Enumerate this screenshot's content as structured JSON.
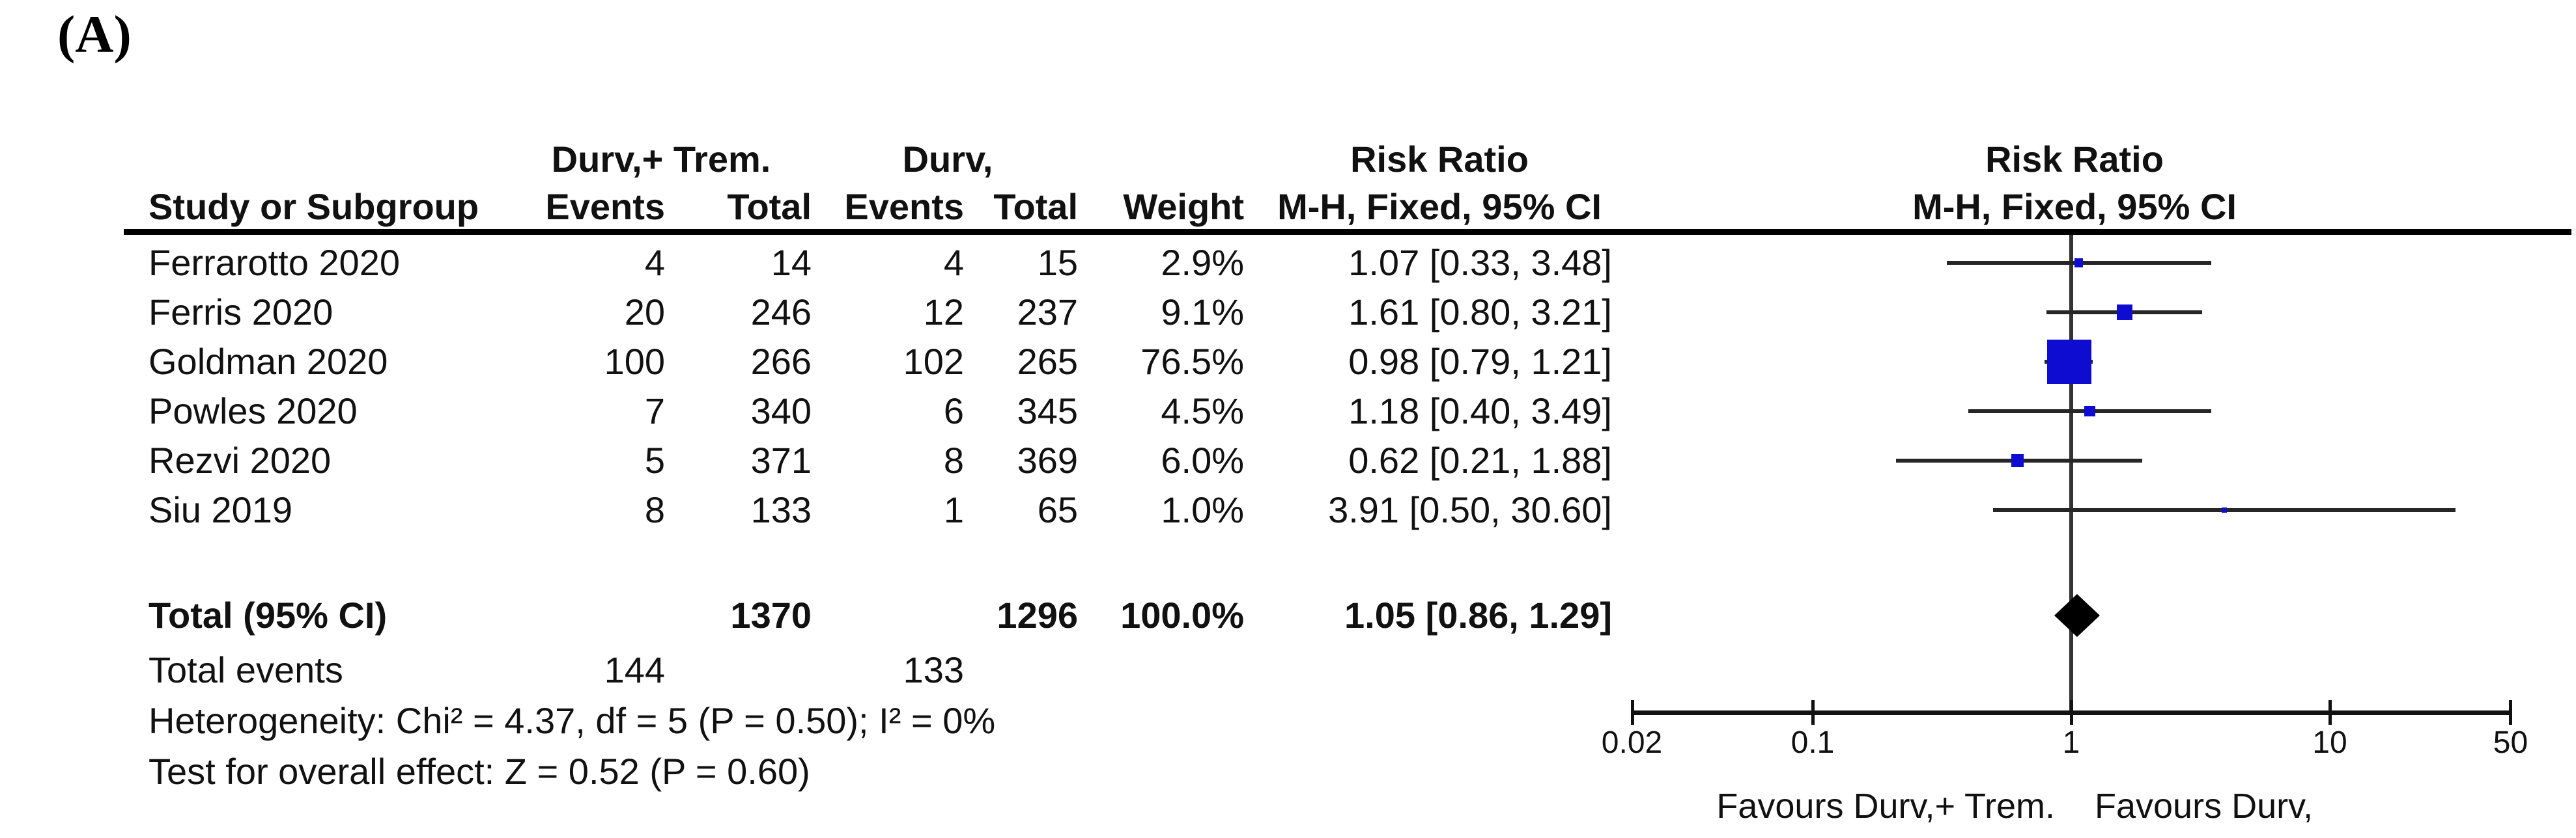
{
  "panel_label": "(A)",
  "header": {
    "group1": "Durv,+ Trem.",
    "group2": "Durv,",
    "risk_ratio": "Risk Ratio",
    "method": "M-H, Fixed, 95% CI",
    "study_col": "Study or Subgroup",
    "events_col": "Events",
    "total_col": "Total",
    "weight_col": "Weight"
  },
  "studies": [
    {
      "name": "Ferrarotto 2020",
      "events1": "4",
      "total1": "14",
      "events2": "4",
      "total2": "15",
      "weight": "2.9%",
      "ci_text": "1.07 [0.33, 3.48]"
    },
    {
      "name": "Ferris 2020",
      "events1": "20",
      "total1": "246",
      "events2": "12",
      "total2": "237",
      "weight": "9.1%",
      "ci_text": "1.61 [0.80, 3.21]"
    },
    {
      "name": "Goldman 2020",
      "events1": "100",
      "total1": "266",
      "events2": "102",
      "total2": "265",
      "weight": "76.5%",
      "ci_text": "0.98 [0.79, 1.21]"
    },
    {
      "name": "Powles 2020",
      "events1": "7",
      "total1": "340",
      "events2": "6",
      "total2": "345",
      "weight": "4.5%",
      "ci_text": "1.18 [0.40, 3.49]"
    },
    {
      "name": "Rezvi 2020",
      "events1": "5",
      "total1": "371",
      "events2": "8",
      "total2": "369",
      "weight": "6.0%",
      "ci_text": "0.62 [0.21, 1.88]"
    },
    {
      "name": "Siu 2019",
      "events1": "8",
      "total1": "133",
      "events2": "1",
      "total2": "65",
      "weight": "1.0%",
      "ci_text": "3.91 [0.50, 30.60]"
    }
  ],
  "totals": {
    "label": "Total (95% CI)",
    "total1": "1370",
    "total2": "1296",
    "weight": "100.0%",
    "ci_text": "1.05 [0.86, 1.29]",
    "events_label": "Total events",
    "events1": "144",
    "events2": "133",
    "heterogeneity": "Heterogeneity: Chi² = 4.37, df = 5 (P = 0.50); I² = 0%",
    "overall": "Test for overall effect: Z = 0.52 (P = 0.60)"
  },
  "axis": {
    "ticks": [
      "0.02",
      "0.1",
      "1",
      "10",
      "50"
    ],
    "favours_left": "Favours Durv,+ Trem.",
    "favours_right": "Favours Durv,"
  },
  "colors": {
    "marker": "#0f0cd2",
    "ci_line": "#262626",
    "axis": "#111111",
    "null_line": "#333333",
    "diamond": "#000000"
  },
  "chart_data": {
    "type": "scatter",
    "subtype": "forest_plot_risk_ratio_fixed_effects",
    "title": "Risk Ratio M-H, Fixed, 95% CI",
    "x_scale": "log",
    "x_ticks": [
      0.02,
      0.1,
      1,
      10,
      50
    ],
    "x_range": [
      0.02,
      50
    ],
    "null_value": 1,
    "studies": [
      {
        "name": "Ferrarotto 2020",
        "events_trt": 4,
        "total_trt": 14,
        "events_ctrl": 4,
        "total_ctrl": 15,
        "weight_pct": 2.9,
        "rr": 1.07,
        "ci_low": 0.33,
        "ci_high": 3.48
      },
      {
        "name": "Ferris 2020",
        "events_trt": 20,
        "total_trt": 246,
        "events_ctrl": 12,
        "total_ctrl": 237,
        "weight_pct": 9.1,
        "rr": 1.61,
        "ci_low": 0.8,
        "ci_high": 3.21
      },
      {
        "name": "Goldman 2020",
        "events_trt": 100,
        "total_trt": 266,
        "events_ctrl": 102,
        "total_ctrl": 265,
        "weight_pct": 76.5,
        "rr": 0.98,
        "ci_low": 0.79,
        "ci_high": 1.21
      },
      {
        "name": "Powles 2020",
        "events_trt": 7,
        "total_trt": 340,
        "events_ctrl": 6,
        "total_ctrl": 345,
        "weight_pct": 4.5,
        "rr": 1.18,
        "ci_low": 0.4,
        "ci_high": 3.49
      },
      {
        "name": "Rezvi 2020",
        "events_trt": 5,
        "total_trt": 371,
        "events_ctrl": 8,
        "total_ctrl": 369,
        "weight_pct": 6.0,
        "rr": 0.62,
        "ci_low": 0.21,
        "ci_high": 1.88
      },
      {
        "name": "Siu 2019",
        "events_trt": 8,
        "total_trt": 133,
        "events_ctrl": 1,
        "total_ctrl": 65,
        "weight_pct": 1.0,
        "rr": 3.91,
        "ci_low": 0.5,
        "ci_high": 30.6
      }
    ],
    "total": {
      "label": "Total (95% CI)",
      "total_trt": 1370,
      "total_ctrl": 1296,
      "events_trt": 144,
      "events_ctrl": 133,
      "weight_pct": 100.0,
      "rr": 1.05,
      "ci_low": 0.86,
      "ci_high": 1.29,
      "heterogeneity_chi2": 4.37,
      "heterogeneity_df": 5,
      "heterogeneity_p": 0.5,
      "i2_pct": 0,
      "overall_z": 0.52,
      "overall_p": 0.6
    },
    "favours_left": "Favours Durv,+ Trem.",
    "favours_right": "Favours Durv,",
    "legend_position": "none",
    "grid": false
  }
}
